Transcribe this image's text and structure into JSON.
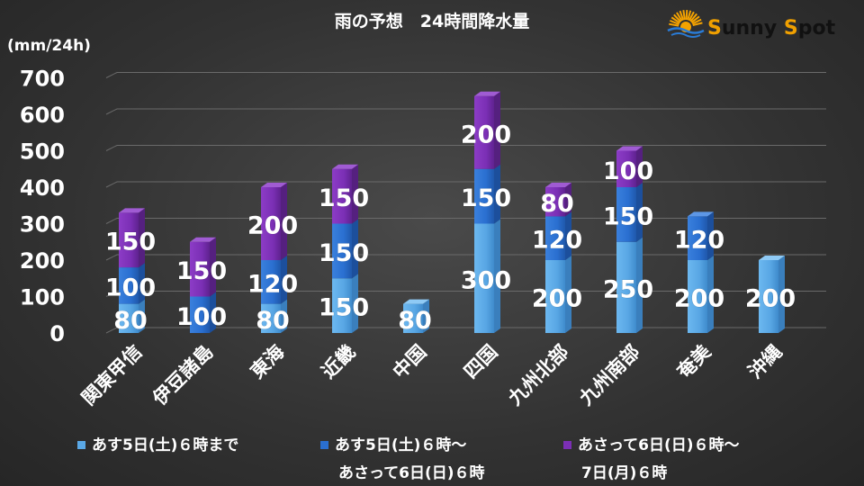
{
  "header": {
    "title": "雨の予想　24時間降水量"
  },
  "logo": {
    "part1_initial": "S",
    "part1_rest": "unny ",
    "part2_initial": "S",
    "part2_rest": "pot",
    "colors": {
      "initial": "#f0a000",
      "rest": "#111111",
      "sun": "#f5a300",
      "wave": "#2a7bd5"
    }
  },
  "chart_data": {
    "type": "bar",
    "stacked": true,
    "title": "雨の予想　24時間降水量",
    "ylabel": "(mm/24h)",
    "xlabel": "",
    "ylim": [
      0,
      700
    ],
    "yticks": [
      0,
      100,
      200,
      300,
      400,
      500,
      600,
      700
    ],
    "grid": true,
    "legend_position": "bottom",
    "categories": [
      "関東甲信",
      "伊豆諸島",
      "東海",
      "近畿",
      "中国",
      "四国",
      "九州北部",
      "九州南部",
      "奄美",
      "沖縄"
    ],
    "series": [
      {
        "name": "あす5日(土)６時まで",
        "color": "#5aa8e6",
        "values": [
          80,
          0,
          80,
          150,
          80,
          300,
          200,
          250,
          200,
          200
        ]
      },
      {
        "name": "あす5日(土)６時～ あさって6日(日)６時",
        "color": "#2a6fd0",
        "values": [
          100,
          100,
          120,
          150,
          0,
          150,
          120,
          150,
          120,
          0
        ]
      },
      {
        "name": "あさって6日(日)６時～ 7日(月)６時",
        "color": "#7b2fb5",
        "values": [
          150,
          150,
          200,
          150,
          0,
          200,
          80,
          100,
          0,
          0
        ]
      }
    ]
  },
  "legend": {
    "items": [
      {
        "line1": "あす5日(土)６時まで",
        "line2": ""
      },
      {
        "line1": "あす5日(土)６時～",
        "line2": "あさって6日(日)６時"
      },
      {
        "line1": "あさって6日(日)６時～",
        "line2": "7日(月)６時"
      }
    ]
  }
}
